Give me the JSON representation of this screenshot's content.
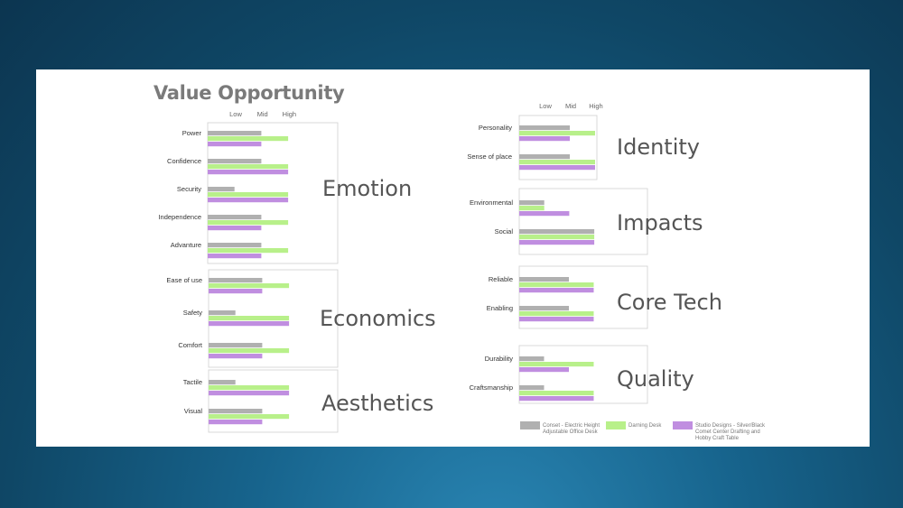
{
  "title": "Value Opportunity",
  "levels": [
    "Low",
    "Mid",
    "High"
  ],
  "colors": {
    "grey": "#b0b0b0",
    "green": "#b8f08a",
    "purple": "#c08ee0"
  },
  "legend": [
    {
      "color": "grey",
      "lines": [
        "Conset - Electric Height",
        "Adjustable Office Desk"
      ]
    },
    {
      "color": "green",
      "lines": [
        "Darning Desk"
      ]
    },
    {
      "color": "purple",
      "lines": [
        "Studio Designs - Silver/Black",
        "Comet Center Drafting and",
        "Hobby Craft Table"
      ]
    }
  ],
  "chart_data": {
    "type": "bar",
    "orientation": "horizontal",
    "scale": [
      "Low",
      "Mid",
      "High"
    ],
    "groups": [
      {
        "category": "Emotion",
        "rows": [
          {
            "label": "Power",
            "values": [
              2,
              3,
              2
            ]
          },
          {
            "label": "Confidence",
            "values": [
              2,
              3,
              3
            ]
          },
          {
            "label": "Security",
            "values": [
              1,
              3,
              3
            ]
          },
          {
            "label": "Independence",
            "values": [
              2,
              3,
              2
            ]
          },
          {
            "label": "Advanture",
            "values": [
              2,
              3,
              2
            ]
          }
        ]
      },
      {
        "category": "Economics",
        "rows": [
          {
            "label": "Ease of use",
            "values": [
              2,
              3,
              2
            ]
          },
          {
            "label": "Safety",
            "values": [
              1,
              3,
              3
            ]
          },
          {
            "label": "Comfort",
            "values": [
              2,
              3,
              2
            ]
          }
        ]
      },
      {
        "category": "Aesthetics",
        "rows": [
          {
            "label": "Tactile",
            "values": [
              1,
              3,
              3
            ]
          },
          {
            "label": "Visual",
            "values": [
              2,
              3,
              2
            ]
          }
        ]
      },
      {
        "category": "Identity",
        "rows": [
          {
            "label": "Personality",
            "values": [
              2,
              3,
              2
            ]
          },
          {
            "label": "Sense of place",
            "values": [
              2,
              3,
              3
            ]
          }
        ]
      },
      {
        "category": "Impacts",
        "rows": [
          {
            "label": "Environmental",
            "values": [
              1,
              1,
              2
            ]
          },
          {
            "label": "Social",
            "values": [
              3,
              3,
              3
            ]
          }
        ]
      },
      {
        "category": "Core Tech",
        "rows": [
          {
            "label": "Reliable",
            "values": [
              2,
              3,
              3
            ]
          },
          {
            "label": "Enabling",
            "values": [
              2,
              3,
              3
            ]
          }
        ]
      },
      {
        "category": "Quality",
        "rows": [
          {
            "label": "Durability",
            "values": [
              1,
              3,
              2
            ]
          },
          {
            "label": "Craftsmanship",
            "values": [
              1,
              3,
              3
            ]
          }
        ]
      }
    ]
  }
}
